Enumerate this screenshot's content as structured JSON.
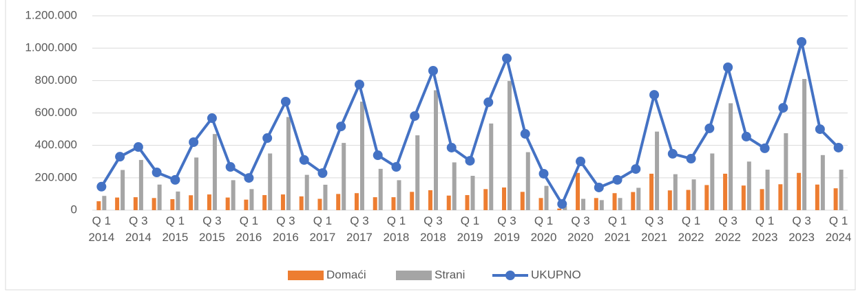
{
  "chart_data": {
    "type": "bar",
    "categories": [
      "Q 1 2014",
      null,
      "Q 3 2014",
      null,
      "Q 1 2015",
      null,
      "Q 3 2015",
      null,
      "Q 1 2016",
      null,
      "Q 3 2016",
      null,
      "Q 1 2017",
      null,
      "Q 3 2017",
      null,
      "Q 1 2018",
      null,
      "Q 3 2018",
      null,
      "Q 1 2019",
      null,
      "Q 3 2019",
      null,
      "Q 1 2020",
      null,
      "Q 3 2020",
      null,
      "Q 1 2021",
      null,
      "Q 3 2021",
      null,
      "Q 1 2022",
      null,
      "Q 3 2022",
      null,
      "Q 1 2023",
      null,
      "Q 3 2023",
      null,
      "Q 1 2024"
    ],
    "series": [
      {
        "name": "Domaći",
        "type": "bar",
        "color": "#ed7d31",
        "values": [
          55000,
          78000,
          80000,
          75000,
          68000,
          92000,
          97000,
          78000,
          65000,
          93000,
          97000,
          85000,
          70000,
          100000,
          105000,
          80000,
          80000,
          113000,
          123000,
          90000,
          93000,
          130000,
          140000,
          113000,
          75000,
          10000,
          230000,
          75000,
          105000,
          112000,
          225000,
          122000,
          125000,
          155000,
          225000,
          152000,
          130000,
          160000,
          230000,
          158000,
          135000
        ]
      },
      {
        "name": "Strani",
        "type": "bar",
        "color": "#a5a5a5",
        "values": [
          88000,
          248000,
          310000,
          158000,
          115000,
          325000,
          470000,
          185000,
          130000,
          350000,
          575000,
          218000,
          157000,
          415000,
          670000,
          255000,
          185000,
          462000,
          740000,
          295000,
          212000,
          535000,
          797000,
          358000,
          150000,
          25000,
          70000,
          62000,
          75000,
          138000,
          485000,
          222000,
          190000,
          350000,
          660000,
          300000,
          250000,
          475000,
          810000,
          340000,
          250000
        ]
      },
      {
        "name": "UKUPNO",
        "type": "line",
        "color": "#4472c4",
        "values": [
          145000,
          330000,
          390000,
          233000,
          187000,
          420000,
          568000,
          267000,
          199000,
          445000,
          670000,
          310000,
          229000,
          517000,
          776000,
          339000,
          267000,
          581000,
          861000,
          386000,
          305000,
          666000,
          937000,
          471000,
          225000,
          38000,
          301000,
          140000,
          187000,
          254000,
          712000,
          348000,
          318000,
          505000,
          882000,
          454000,
          382000,
          632000,
          1039000,
          500000,
          386000
        ]
      }
    ],
    "ylim": [
      0,
      1200000
    ],
    "yticks": [
      0,
      {
        "value": 200000,
        "label": "200.000"
      },
      {
        "value": 400000,
        "label": "400.000"
      },
      {
        "value": 600000,
        "label": "600.000"
      },
      {
        "value": 800000,
        "label": "800.000"
      },
      {
        "value": 1000000,
        "label": "1.000.000"
      },
      {
        "value": 1200000,
        "label": "1.200.000"
      }
    ],
    "grid": true,
    "legend": "bottom"
  }
}
